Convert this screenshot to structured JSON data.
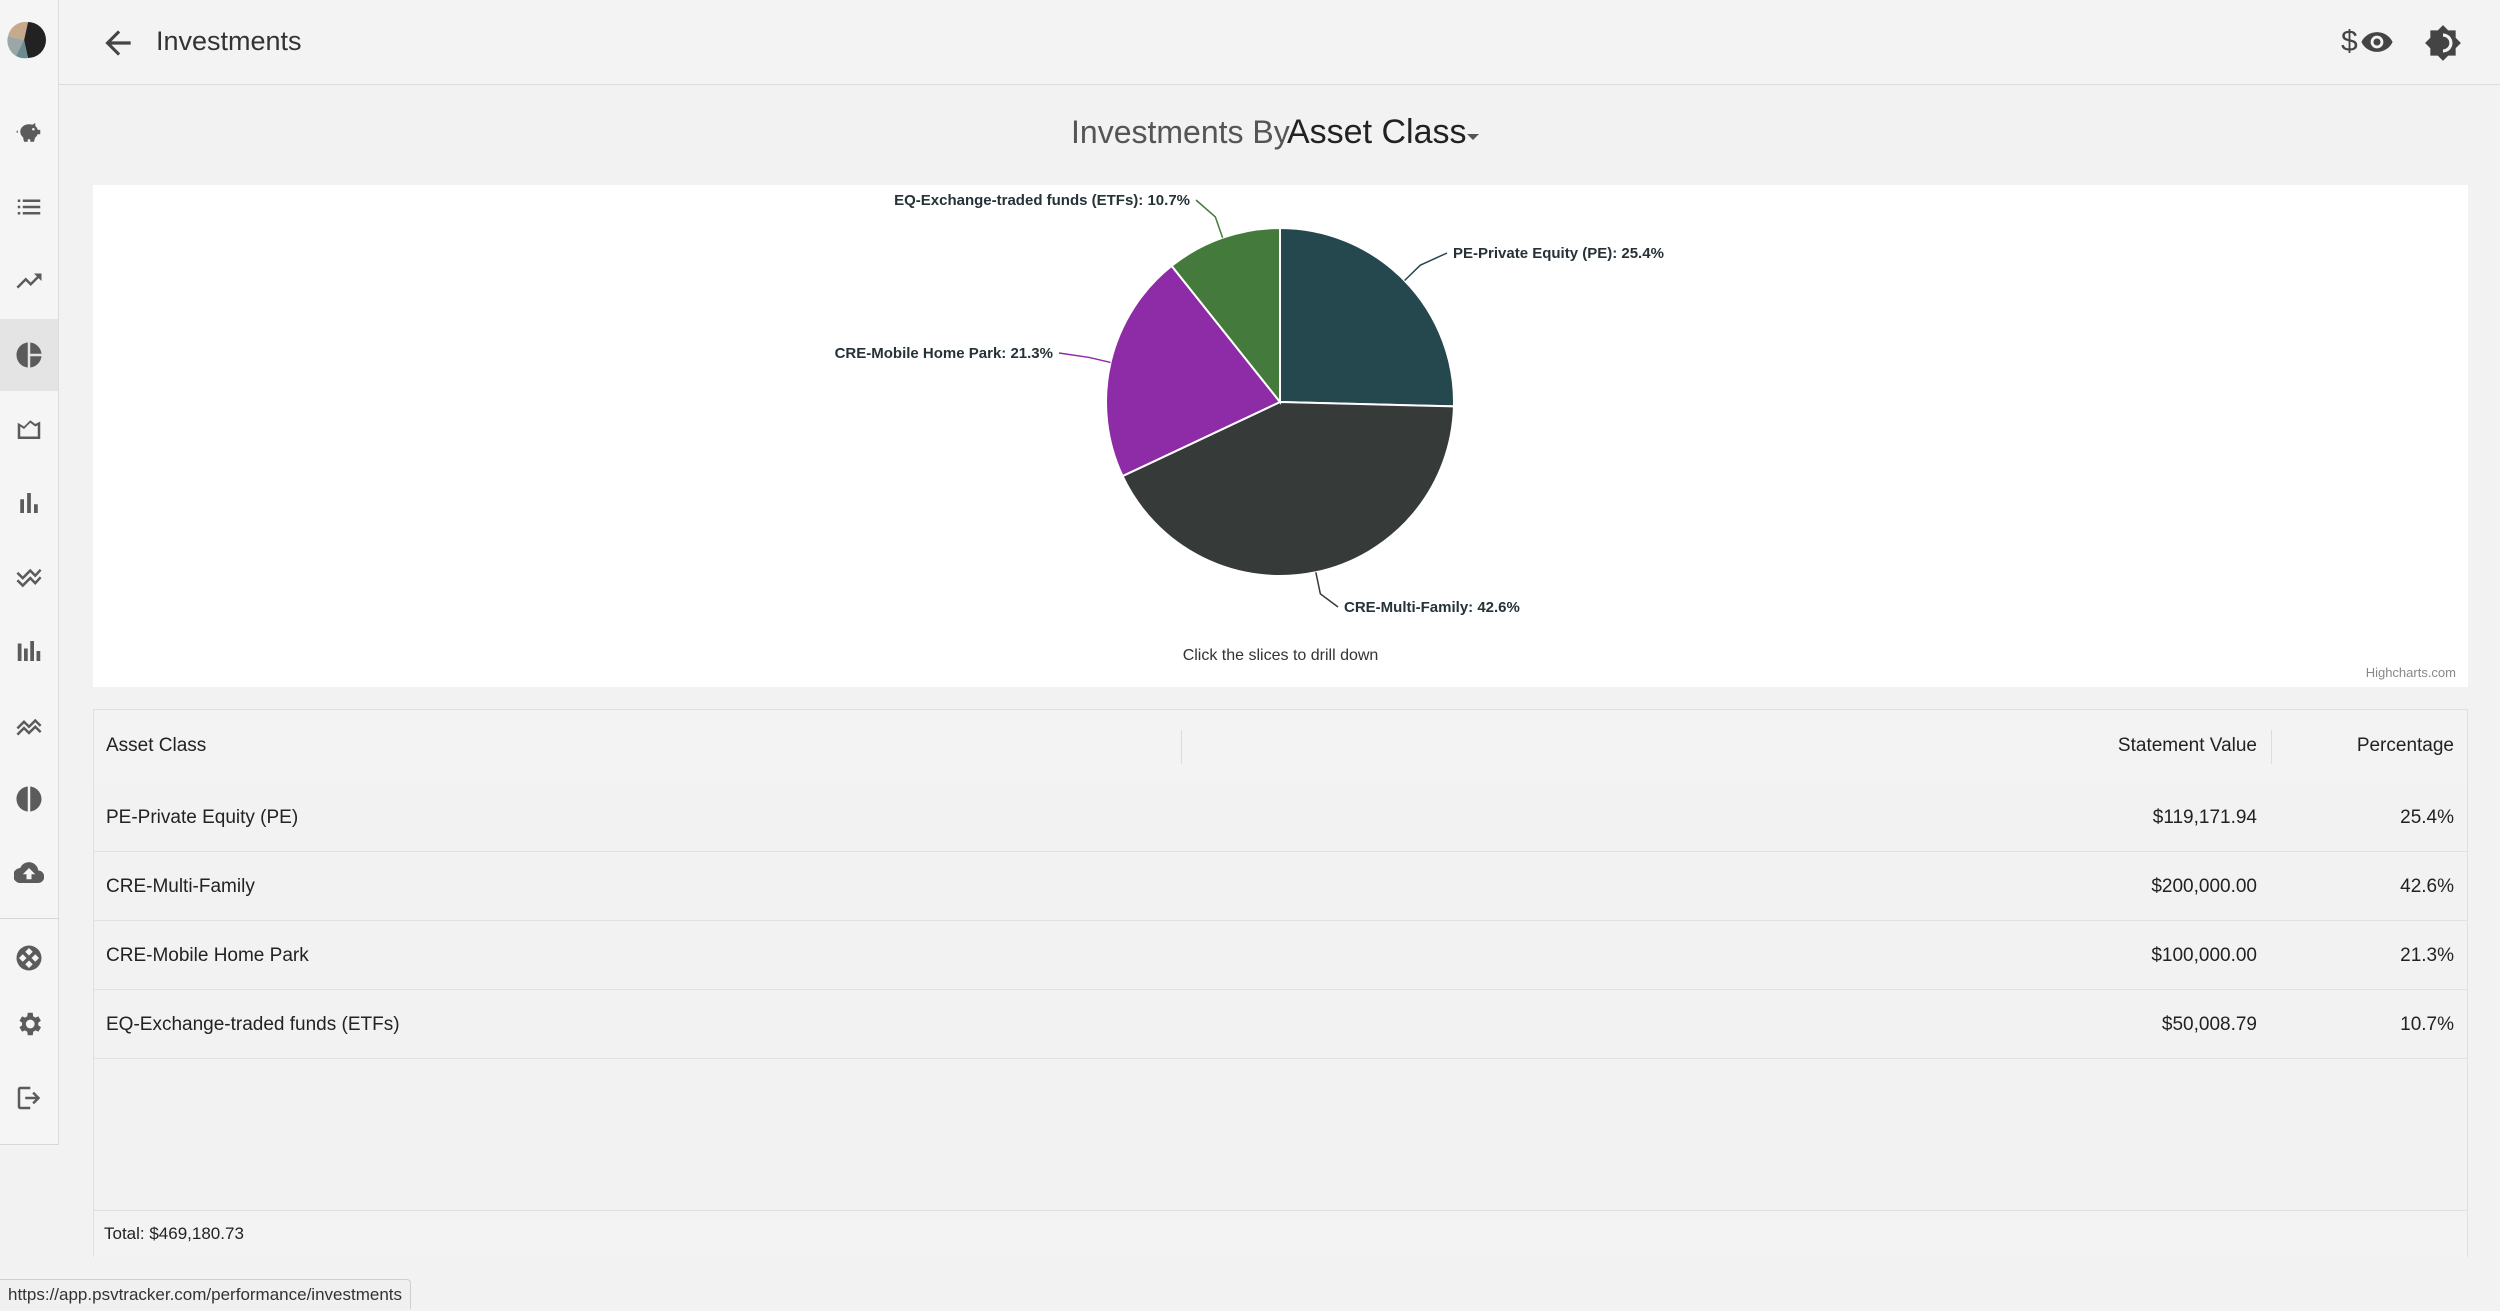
{
  "header": {
    "title": "Investments",
    "currency_symbol": "$"
  },
  "sidebar": {
    "items": [
      {
        "icon": "piggy-bank-icon"
      },
      {
        "icon": "list-icon"
      },
      {
        "icon": "trending-up-icon"
      },
      {
        "icon": "pie-chart-icon",
        "active": true
      },
      {
        "icon": "area-chart-icon"
      },
      {
        "icon": "bar-chart-icon"
      },
      {
        "icon": "multiline-chart-icon"
      },
      {
        "icon": "stacked-bar-icon"
      },
      {
        "icon": "stacked-line-icon"
      },
      {
        "icon": "donut-icon"
      },
      {
        "icon": "cloud-upload-icon"
      },
      {
        "icon": "network-icon"
      },
      {
        "icon": "gear-icon"
      },
      {
        "icon": "logout-icon"
      }
    ]
  },
  "chart_heading": {
    "prefix": "Investments By",
    "selected": "Asset Class"
  },
  "chart_data": {
    "type": "pie",
    "series": [
      {
        "name": "PE-Private Equity (PE)",
        "value": 25.4,
        "color": "#24484e",
        "label": "PE-Private Equity (PE): 25.4%"
      },
      {
        "name": "CRE-Multi-Family",
        "value": 42.6,
        "color": "#363a39",
        "label": "CRE-Multi-Family: 42.6%"
      },
      {
        "name": "CRE-Mobile Home Park",
        "value": 21.3,
        "color": "#8e2ba6",
        "label": "CRE-Mobile Home Park: 21.3%"
      },
      {
        "name": "EQ-Exchange-traded funds (ETFs)",
        "value": 10.7,
        "color": "#447a3b",
        "label": "EQ-Exchange-traded funds (ETFs): 10.7%"
      }
    ],
    "subtitle": "Click the slices to drill down",
    "credits": "Highcharts.com"
  },
  "table": {
    "headers": [
      "Asset Class",
      "Statement Value",
      "Percentage"
    ],
    "rows": [
      {
        "asset_class": "PE-Private Equity (PE)",
        "value": "$119,171.94",
        "pct": "25.4%"
      },
      {
        "asset_class": "CRE-Multi-Family",
        "value": "$200,000.00",
        "pct": "42.6%"
      },
      {
        "asset_class": "CRE-Mobile Home Park",
        "value": "$100,000.00",
        "pct": "21.3%"
      },
      {
        "asset_class": "EQ-Exchange-traded funds (ETFs)",
        "value": "$50,008.79",
        "pct": "10.7%"
      }
    ],
    "total": "Total: $469,180.73"
  },
  "status_url": "https://app.psvtracker.com/performance/investments"
}
